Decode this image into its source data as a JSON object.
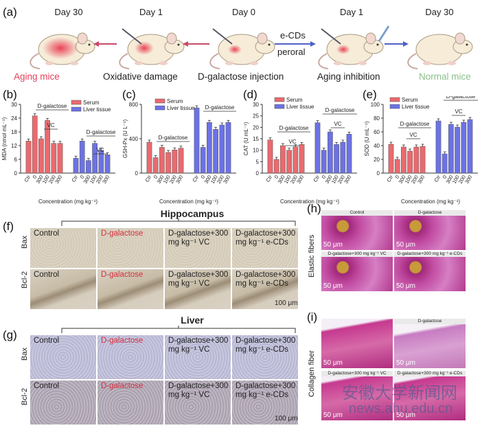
{
  "panel_a": {
    "label": "(a)",
    "days": [
      "Day 30",
      "Day 1",
      "Day 0",
      "Day 1",
      "Day 30"
    ],
    "arrow_top": "e-CDs",
    "arrow_bottom": "peroral",
    "captions": [
      "Aging mice",
      "Oxidative damage",
      "D-galactose injection",
      "Aging inhibition",
      "Normal mice"
    ],
    "colors": {
      "aging": "#e2405a",
      "normal": "#8cc08c",
      "arrow_left": "#c84a6a",
      "arrow_right": "#5060c8"
    }
  },
  "chart_data": [
    {
      "type": "bar",
      "label": "(b)",
      "ylabel": "MDA (nmol mL⁻¹)",
      "xlabel": "Concentration (mg kg⁻¹)",
      "ylim": [
        0,
        30
      ],
      "yticks": [
        0,
        6,
        12,
        18,
        24,
        30
      ],
      "categories": [
        "Ctr",
        "0",
        "300",
        "100",
        "200",
        "300"
      ],
      "legend": [
        "Serum",
        "Liver tissue"
      ],
      "annotations": [
        "D-galactose",
        "VC",
        "D-galactose",
        "VC"
      ],
      "series": [
        {
          "name": "Serum",
          "values": [
            14,
            25,
            15,
            23,
            13,
            13
          ]
        },
        {
          "name": "Liver tissue",
          "values": [
            6.5,
            14,
            5.5,
            13,
            10,
            8
          ]
        }
      ]
    },
    {
      "type": "bar",
      "label": "(c)",
      "ylabel": "GSH-Px (U L⁻¹)",
      "xlabel": "Concentration (mg kg⁻¹)",
      "ylim": [
        0,
        800
      ],
      "yticks": [
        0,
        400,
        800
      ],
      "categories": [
        "Ctr",
        "0",
        "300",
        "100",
        "200",
        "300"
      ],
      "legend": [
        "Serum",
        "Liver tissue"
      ],
      "annotations": [
        "D-galactose",
        "D-galactose"
      ],
      "series": [
        {
          "name": "Serum",
          "values": [
            360,
            180,
            300,
            240,
            270,
            290
          ]
        },
        {
          "name": "Liver tissue",
          "values": [
            760,
            300,
            590,
            510,
            560,
            590
          ]
        }
      ]
    },
    {
      "type": "bar",
      "label": "(d)",
      "ylabel": "CAT (U mL⁻¹)",
      "xlabel": "Concentration (mg kg⁻¹)",
      "ylim": [
        0,
        30
      ],
      "yticks": [
        0,
        5,
        10,
        15,
        20,
        25,
        30
      ],
      "categories": [
        "Ctr",
        "0",
        "300",
        "100",
        "200",
        "300"
      ],
      "legend": [
        "Serum",
        "Liver tissue"
      ],
      "annotations": [
        "D-galactose",
        "VC",
        "D-galactose",
        "VC"
      ],
      "series": [
        {
          "name": "Serum",
          "values": [
            14.5,
            6,
            12,
            10,
            11.5,
            12.5
          ]
        },
        {
          "name": "Liver tissue",
          "values": [
            22,
            10,
            18,
            12.5,
            13.5,
            17
          ]
        }
      ]
    },
    {
      "type": "bar",
      "label": "(e)",
      "ylabel": "SOD (U mL⁻¹)",
      "xlabel": "Concentration (mg kg⁻¹)",
      "ylim": [
        0,
        100
      ],
      "yticks": [
        0,
        20,
        40,
        60,
        80,
        100
      ],
      "categories": [
        "Ctr",
        "0",
        "300",
        "100",
        "200",
        "300"
      ],
      "legend": [
        "Serum",
        "Liver tissue"
      ],
      "annotations": [
        "D-galactose",
        "VC",
        "D-galactose",
        "VC"
      ],
      "series": [
        {
          "name": "Serum",
          "values": [
            42,
            20,
            38,
            32,
            38,
            39
          ]
        },
        {
          "name": "Liver tissue",
          "values": [
            76,
            28,
            71,
            67,
            74,
            78
          ]
        }
      ]
    }
  ],
  "colors": {
    "serum": "#ea6a6e",
    "liver": "#6c72e4"
  },
  "panel_f": {
    "label": "(f)",
    "header": "Hippocampus",
    "row_labels": [
      "Bax",
      "Bcl-2"
    ],
    "col_labels": [
      "Control",
      "D-galactose",
      "D-galactose+300 mg kg⁻¹ VC",
      "D-galactose+300 mg kg⁻¹ e-CDs"
    ],
    "scale": "100 μm"
  },
  "panel_g": {
    "label": "(g)",
    "header": "Liver",
    "row_labels": [
      "Bax",
      "Bcl-2"
    ],
    "col_labels": [
      "Control",
      "D-galactose",
      "D-galactose+300 mg kg⁻¹ VC",
      "D-galactose+300 mg kg⁻¹ e-CDs"
    ],
    "scale": "100 μm"
  },
  "panel_h": {
    "label": "(h)",
    "side": "Elastic fibers",
    "captions": [
      "Control",
      "D-galactose",
      "D-galactose+300 mg kg⁻¹ VC",
      "D-galactose+300 mg kg⁻¹ e-CDs"
    ],
    "scale": "50 μm"
  },
  "panel_i": {
    "label": "(i)",
    "side": "Collagen fiber",
    "captions": [
      "D-galactose",
      "D-galactose+300 mg kg⁻¹ VC",
      "D-galactose+300 mg kg⁻¹ e-CDs"
    ],
    "scale": "50 μm"
  },
  "watermark": [
    "安徽大学新闻网",
    "news.ahu.edu.cn"
  ]
}
